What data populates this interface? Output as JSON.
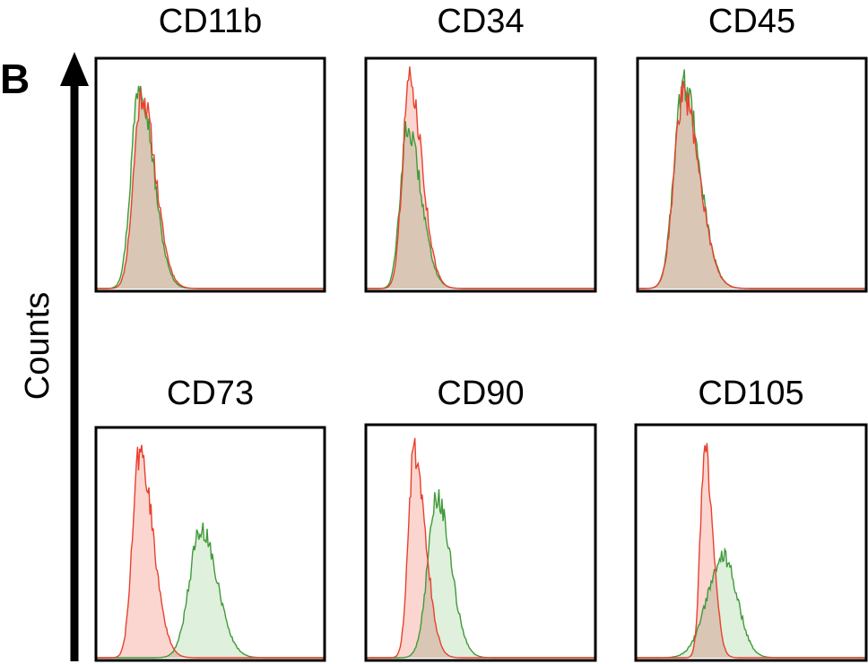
{
  "figure": {
    "panel_letter": "B",
    "ylabel": "Counts"
  },
  "colors": {
    "control_line": "#e8412e",
    "control_fill": "#fbd6d0",
    "marker_line": "#3f9a3a",
    "marker_fill": "#dff0dc",
    "overlap_fill": "#d9c6b4",
    "frame": "#000000"
  },
  "chart_data": [
    {
      "type": "area",
      "title": "CD11b",
      "xlim": [
        0,
        1
      ],
      "ylim": [
        0,
        1
      ],
      "series": [
        {
          "role": "control",
          "peak": 0.2,
          "width_left": 0.035,
          "width_right": 0.06,
          "height": 0.87
        },
        {
          "role": "marker",
          "peak": 0.19,
          "width_left": 0.035,
          "width_right": 0.06,
          "height": 0.93
        }
      ]
    },
    {
      "type": "area",
      "title": "CD34",
      "xlim": [
        0,
        1
      ],
      "ylim": [
        0,
        1
      ],
      "series": [
        {
          "role": "control",
          "peak": 0.19,
          "width_left": 0.03,
          "width_right": 0.055,
          "height": 0.93
        },
        {
          "role": "marker",
          "peak": 0.18,
          "width_left": 0.03,
          "width_right": 0.06,
          "height": 0.72
        }
      ]
    },
    {
      "type": "area",
      "title": "CD45",
      "xlim": [
        0,
        1
      ],
      "ylim": [
        0,
        1
      ],
      "series": [
        {
          "role": "control",
          "peak": 0.2,
          "width_left": 0.04,
          "width_right": 0.07,
          "height": 0.87
        },
        {
          "role": "marker",
          "peak": 0.2,
          "width_left": 0.04,
          "width_right": 0.07,
          "height": 0.92
        }
      ]
    },
    {
      "type": "area",
      "title": "CD73",
      "xlim": [
        0,
        1
      ],
      "ylim": [
        0,
        1
      ],
      "series": [
        {
          "role": "control",
          "peak": 0.19,
          "width_left": 0.03,
          "width_right": 0.06,
          "height": 0.92
        },
        {
          "role": "marker",
          "peak": 0.46,
          "width_left": 0.05,
          "width_right": 0.07,
          "height": 0.58
        }
      ]
    },
    {
      "type": "area",
      "title": "CD90",
      "xlim": [
        0,
        1
      ],
      "ylim": [
        0,
        1
      ],
      "series": [
        {
          "role": "control",
          "peak": 0.21,
          "width_left": 0.025,
          "width_right": 0.05,
          "height": 0.92
        },
        {
          "role": "marker",
          "peak": 0.31,
          "width_left": 0.04,
          "width_right": 0.06,
          "height": 0.71
        }
      ]
    },
    {
      "type": "area",
      "title": "CD105",
      "xlim": [
        0,
        1
      ],
      "ylim": [
        0,
        1
      ],
      "series": [
        {
          "role": "control",
          "peak": 0.3,
          "width_left": 0.02,
          "width_right": 0.035,
          "height": 0.92
        },
        {
          "role": "marker",
          "peak": 0.38,
          "width_left": 0.07,
          "width_right": 0.06,
          "height": 0.45
        }
      ]
    }
  ]
}
